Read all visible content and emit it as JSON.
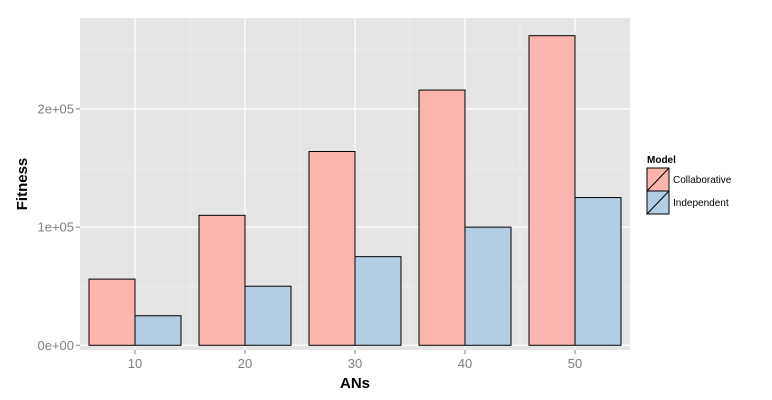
{
  "chart_data": {
    "type": "bar",
    "xlabel": "ANs",
    "ylabel": "Fitness",
    "categories": [
      "10",
      "20",
      "30",
      "40",
      "50"
    ],
    "series": [
      {
        "name": "Collaborative",
        "color": "#fbb4ae",
        "values": [
          56000,
          110000,
          164000,
          216000,
          262000
        ]
      },
      {
        "name": "Independent",
        "color": "#b3cde3",
        "values": [
          25000,
          50000,
          75000,
          100000,
          125000
        ]
      }
    ],
    "ylim": [
      -4000,
      277000
    ],
    "yticks": [
      0,
      100000,
      200000
    ],
    "ytick_labels": [
      "0e+00",
      "1e+05",
      "2e+05"
    ],
    "legend": {
      "title": "Model",
      "position": "right"
    },
    "grid": true,
    "panel_color": "#e5e5e5"
  }
}
